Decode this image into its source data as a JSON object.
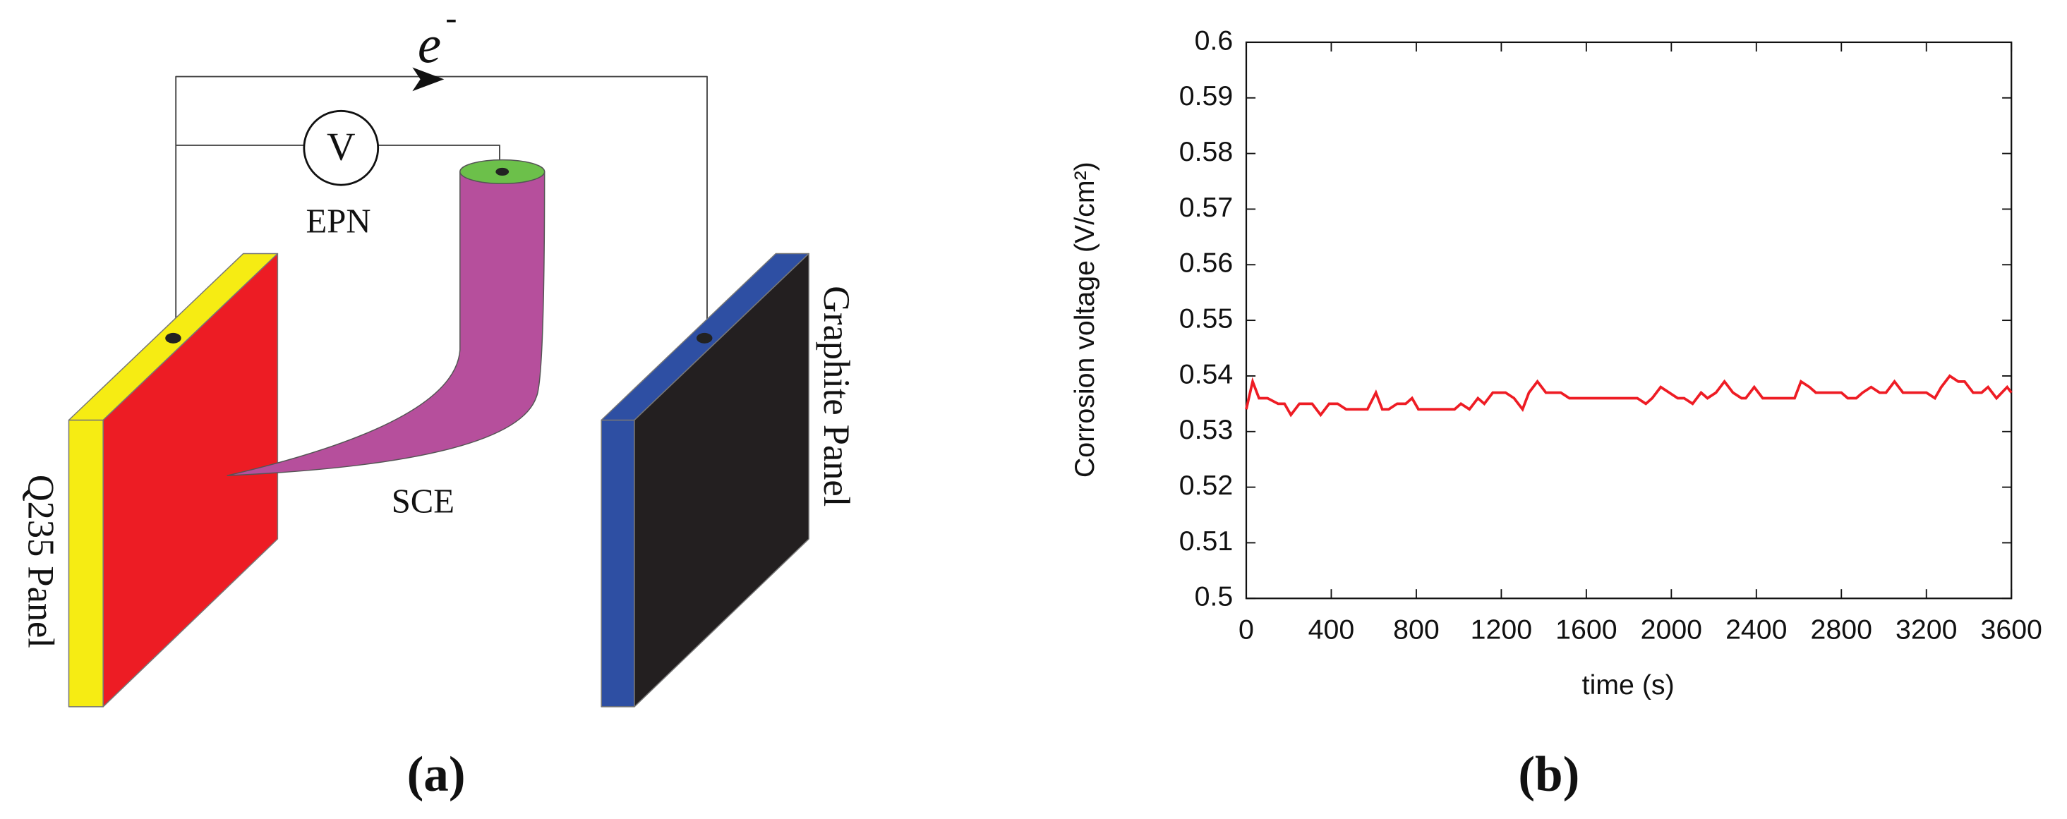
{
  "diagram": {
    "electron": {
      "symbol": "e",
      "charge": "-"
    },
    "meter": "V",
    "epn": "EPN",
    "sce": "SCE",
    "left_panel": "Q235 Panel",
    "right_panel": "Graphite Panel",
    "caption": "(a)"
  },
  "chart_caption": "(b)",
  "chart_data": {
    "type": "line",
    "xlabel": "time (s)",
    "ylabel": "Corrosion voltage (V/cm²)",
    "x": [
      0,
      30,
      60,
      100,
      150,
      180,
      210,
      250,
      310,
      350,
      390,
      430,
      470,
      570,
      610,
      640,
      670,
      710,
      750,
      780,
      810,
      980,
      1010,
      1050,
      1090,
      1120,
      1160,
      1220,
      1260,
      1300,
      1330,
      1370,
      1410,
      1480,
      1520,
      1840,
      1880,
      1910,
      1950,
      1990,
      2030,
      2060,
      2100,
      2140,
      2170,
      2210,
      2250,
      2290,
      2330,
      2350,
      2390,
      2430,
      2580,
      2610,
      2650,
      2680,
      2800,
      2830,
      2870,
      2900,
      2940,
      2980,
      3010,
      3050,
      3090,
      3200,
      3240,
      3270,
      3310,
      3350,
      3380,
      3420,
      3460,
      3490,
      3530,
      3580,
      3600
    ],
    "series": [
      {
        "color": "#ee1c24",
        "values": [
          0.534,
          0.539,
          0.536,
          0.536,
          0.535,
          0.535,
          0.533,
          0.535,
          0.535,
          0.533,
          0.535,
          0.535,
          0.534,
          0.534,
          0.537,
          0.534,
          0.534,
          0.535,
          0.535,
          0.536,
          0.534,
          0.534,
          0.535,
          0.534,
          0.536,
          0.535,
          0.537,
          0.537,
          0.536,
          0.534,
          0.537,
          0.539,
          0.537,
          0.537,
          0.536,
          0.536,
          0.535,
          0.536,
          0.538,
          0.537,
          0.536,
          0.536,
          0.535,
          0.537,
          0.536,
          0.537,
          0.539,
          0.537,
          0.536,
          0.536,
          0.538,
          0.536,
          0.536,
          0.539,
          0.538,
          0.537,
          0.537,
          0.536,
          0.536,
          0.537,
          0.538,
          0.537,
          0.537,
          0.539,
          0.537,
          0.537,
          0.536,
          0.538,
          0.54,
          0.539,
          0.539,
          0.537,
          0.537,
          0.538,
          0.536,
          0.538,
          0.537
        ]
      }
    ],
    "xlim": [
      0,
      3600
    ],
    "xticks": [
      0,
      400,
      800,
      1200,
      1600,
      2000,
      2400,
      2800,
      3200,
      3600
    ],
    "ylim": [
      0.5,
      0.6
    ],
    "yticks": [
      {
        "value": 0.5,
        "label": "0.5"
      },
      0.51,
      0.52,
      0.53,
      0.54,
      0.55,
      0.56,
      0.57,
      0.58,
      0.59,
      {
        "value": 0.6,
        "label": "0.6"
      }
    ]
  }
}
